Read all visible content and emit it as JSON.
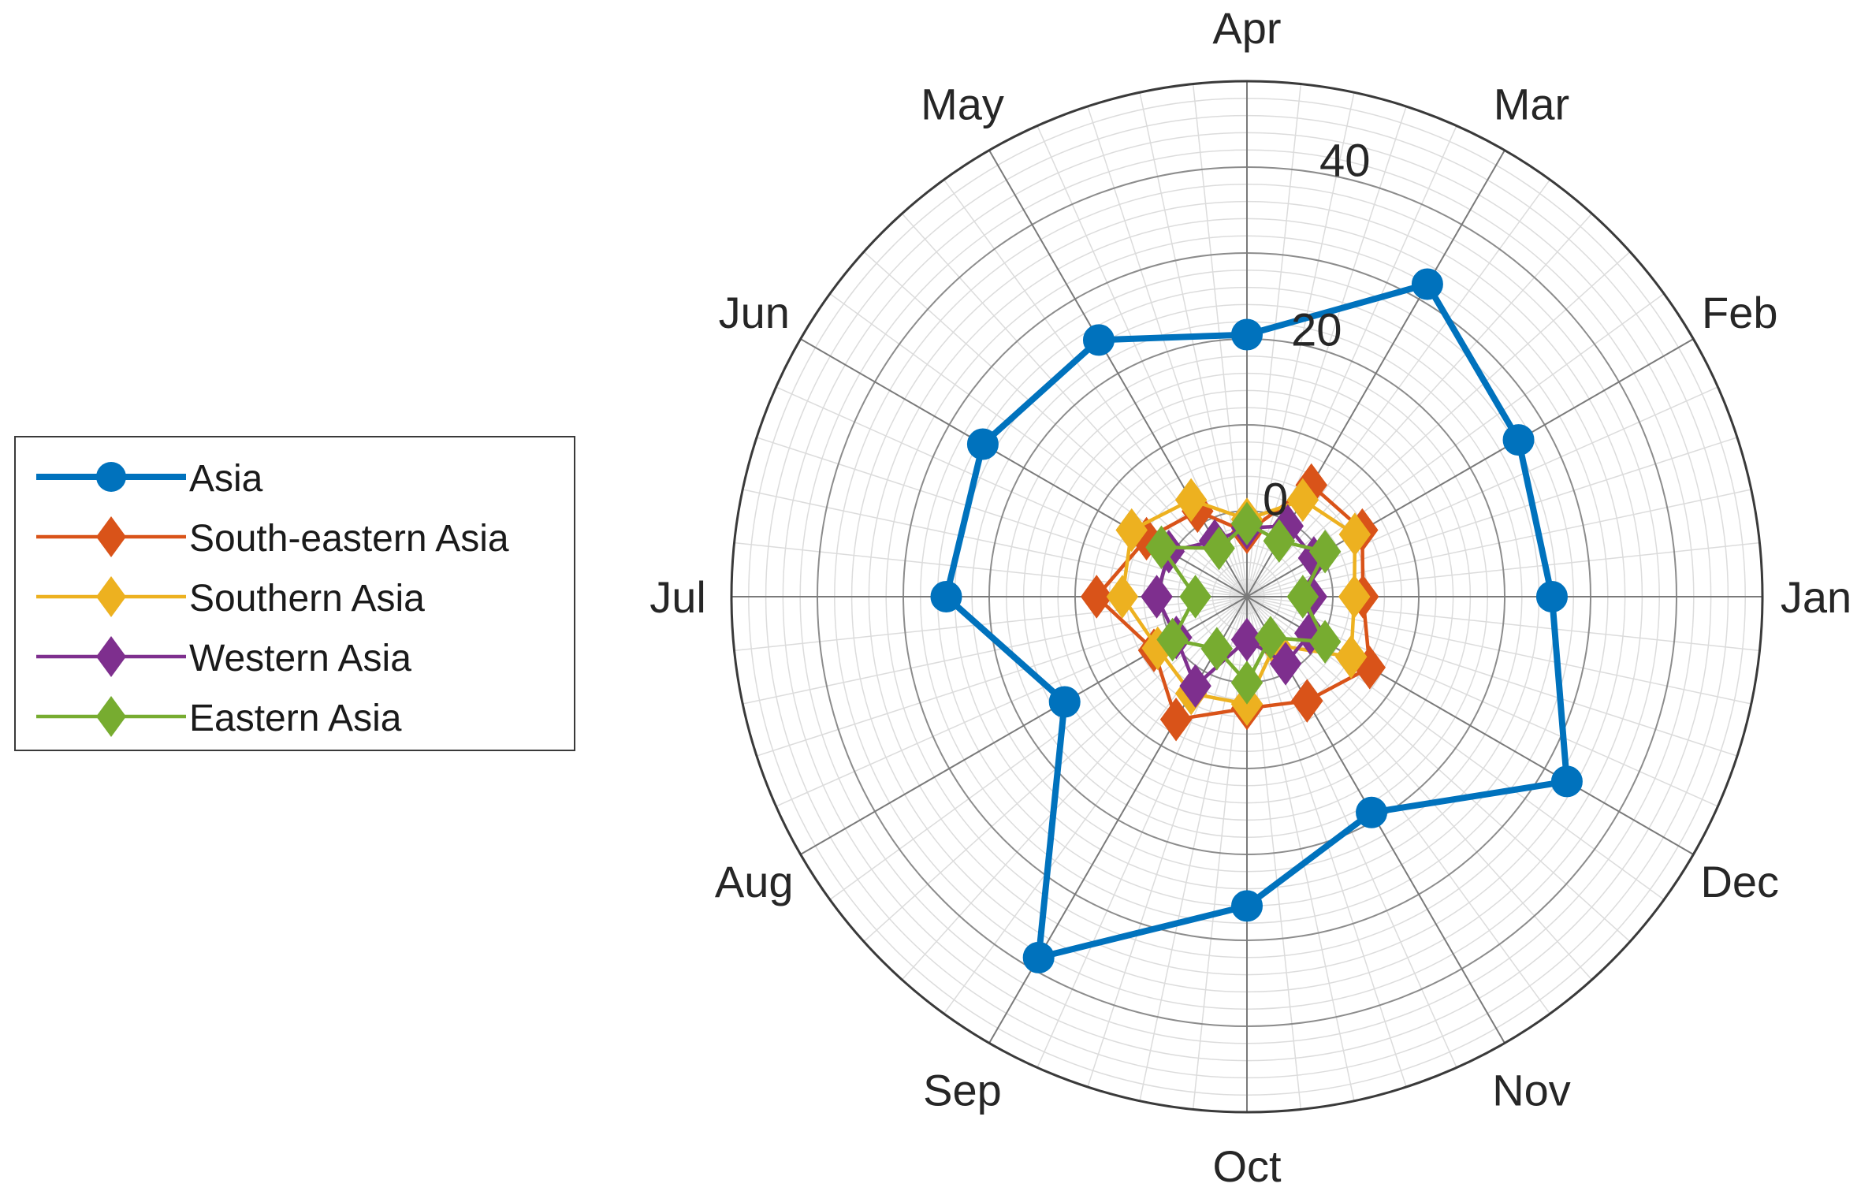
{
  "chart_data": {
    "type": "polar-line",
    "categories": [
      "Jan",
      "Feb",
      "Mar",
      "Apr",
      "May",
      "Jun",
      "Jul",
      "Aug",
      "Sep",
      "Oct",
      "Nov",
      "Dec"
    ],
    "theta_direction": "counterclockwise",
    "theta_zero": "right",
    "r_offset": -10,
    "rlim": [
      -10,
      50
    ],
    "rticks": [
      0,
      20,
      40
    ],
    "rtick_labels": [
      "0",
      "20",
      "40"
    ],
    "grid": true,
    "minor_grid": true,
    "legend_position": "left",
    "series": [
      {
        "name": "Asia",
        "color": "#0072BD",
        "marker": "circle",
        "values": [
          25.5,
          26.5,
          32.0,
          20.5,
          24.5,
          25.5,
          25.0,
          14.5,
          38.5,
          26.0,
          19.0,
          33.0
        ]
      },
      {
        "name": "South-eastern Asia",
        "color": "#D95319",
        "marker": "diamond",
        "values": [
          3.5,
          5.5,
          5.0,
          -2.5,
          1.5,
          3.5,
          7.5,
          2.5,
          6.5,
          3.0,
          4.0,
          6.5
        ]
      },
      {
        "name": "Southern Asia",
        "color": "#EDB120",
        "marker": "diamond",
        "values": [
          2.5,
          4.5,
          3.0,
          -1.0,
          3.0,
          5.5,
          4.5,
          2.0,
          3.0,
          2.5,
          -3.5,
          4.0
        ]
      },
      {
        "name": "Western Asia",
        "color": "#7E2F8E",
        "marker": "diamond",
        "values": [
          -2.5,
          -1.0,
          -0.5,
          -2.0,
          -2.5,
          0.5,
          0.5,
          -0.5,
          2.0,
          -5.0,
          -1.0,
          -1.5
        ]
      },
      {
        "name": "Eastern Asia",
        "color": "#77AC30",
        "marker": "diamond",
        "values": [
          -3.5,
          0.5,
          -2.5,
          -1.5,
          -3.5,
          1.5,
          -4.0,
          0.0,
          -3.0,
          0.0,
          -4.5,
          0.5
        ]
      }
    ]
  }
}
